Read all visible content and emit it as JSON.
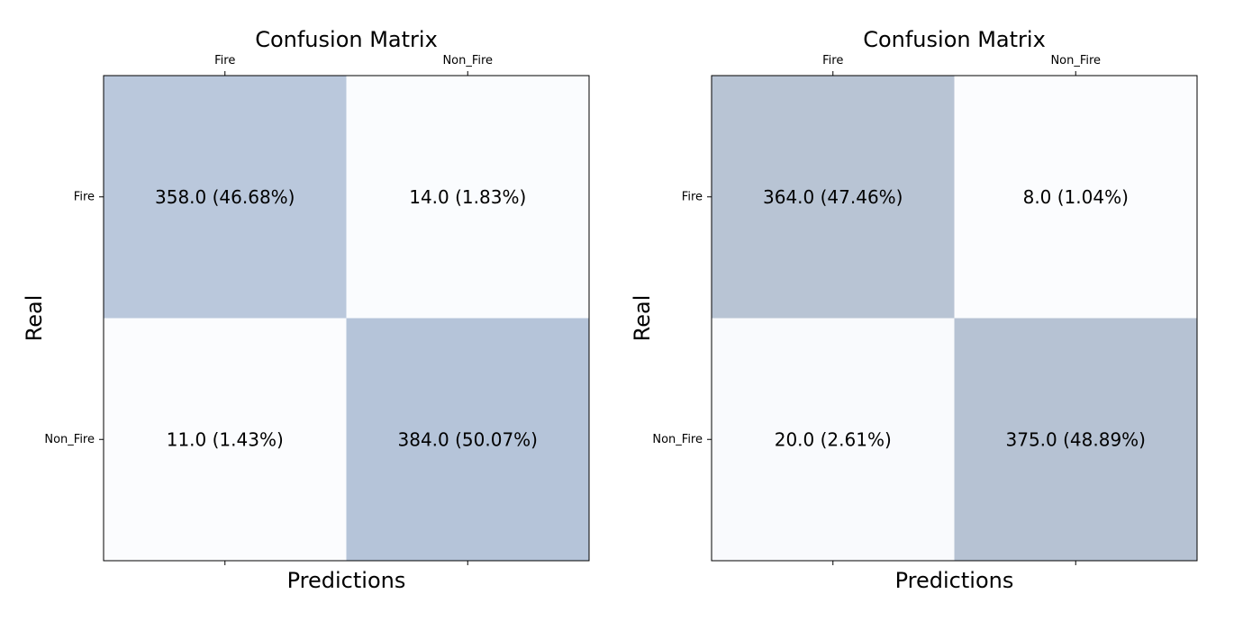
{
  "chart_data": [
    {
      "type": "heatmap",
      "title": "Confusion Matrix",
      "xlabel": "Predictions",
      "ylabel": "Real",
      "x_categories": [
        "Fire",
        "Non_Fire"
      ],
      "y_categories": [
        "Fire",
        "Non_Fire"
      ],
      "values": [
        [
          358.0,
          14.0
        ],
        [
          11.0,
          384.0
        ]
      ],
      "cell_labels": [
        [
          "358.0 (46.68%)",
          "14.0 (1.83%)"
        ],
        [
          "11.0 (1.43%)",
          "384.0 (50.07%)"
        ]
      ],
      "colormap": {
        "low": "#fbfcfe",
        "high": "#b5c4d9"
      },
      "grid": false
    },
    {
      "type": "heatmap",
      "title": "Confusion Matrix",
      "xlabel": "Predictions",
      "ylabel": "Real",
      "x_categories": [
        "Fire",
        "Non_Fire"
      ],
      "y_categories": [
        "Fire",
        "Non_Fire"
      ],
      "values": [
        [
          364.0,
          8.0
        ],
        [
          20.0,
          375.0
        ]
      ],
      "cell_labels": [
        [
          "364.0 (47.46%)",
          "8.0 (1.04%)"
        ],
        [
          "20.0 (2.61%)",
          "375.0 (48.89%)"
        ]
      ],
      "colormap": {
        "low": "#fbfcfe",
        "high": "#b6c2d3"
      },
      "grid": false
    }
  ]
}
